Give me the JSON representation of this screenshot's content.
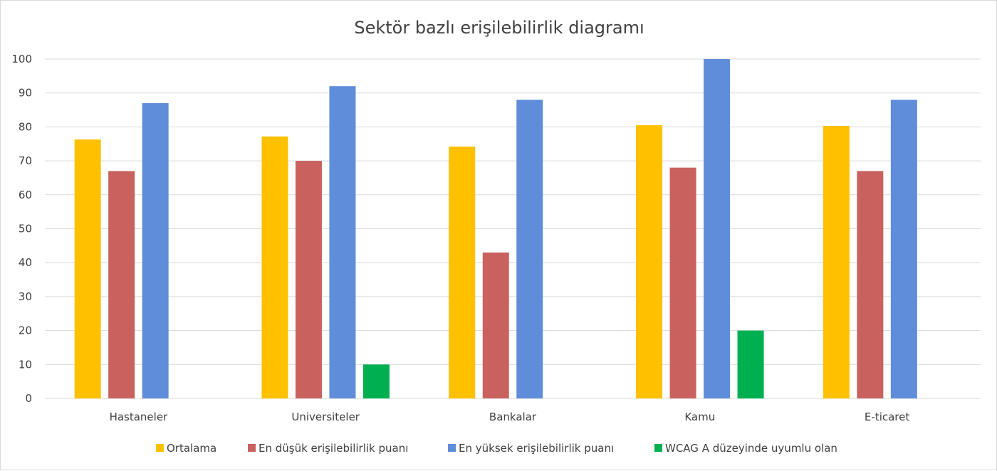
{
  "chart_data": {
    "type": "bar",
    "title": "Sektör bazlı erişilebilirlik diagramı",
    "categories": [
      "Hastaneler",
      "Universiteler",
      "Bankalar",
      "Kamu",
      "E-ticaret"
    ],
    "series": [
      {
        "name": "Ortalama",
        "color": "#FFC000",
        "values": [
          76.3,
          77.2,
          74.2,
          80.5,
          80.3
        ]
      },
      {
        "name": "En düşük erişilebilirlik puanı",
        "color": "#C9625F",
        "values": [
          67,
          70,
          43,
          68,
          67
        ]
      },
      {
        "name": "En yüksek erişilebilirlik puanı",
        "color": "#5F8DDA",
        "values": [
          87,
          92,
          88,
          100,
          88
        ]
      },
      {
        "name": "WCAG A düzeyinde uyumlu olan",
        "color": "#00B050",
        "values": [
          0,
          10,
          0,
          20,
          0
        ]
      }
    ],
    "yticks": [
      0,
      10,
      20,
      30,
      40,
      50,
      60,
      70,
      80,
      90,
      100
    ],
    "ylim": [
      0,
      100
    ],
    "grid": true,
    "legend": "bottom"
  }
}
